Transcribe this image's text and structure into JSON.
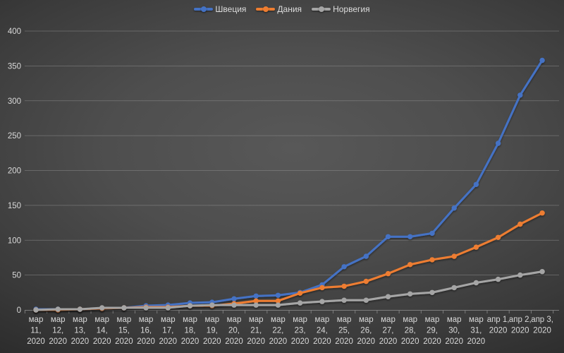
{
  "chart_data": {
    "type": "line",
    "title": "",
    "legend_position": "top",
    "grid": "horizontal",
    "ylim": [
      0,
      400
    ],
    "y_ticks": [
      0,
      50,
      100,
      150,
      200,
      250,
      300,
      350,
      400
    ],
    "categories": [
      "мар 11, 2020",
      "мар 12, 2020",
      "мар 13, 2020",
      "мар 14, 2020",
      "мар 15, 2020",
      "мар 16, 2020",
      "мар 17, 2020",
      "мар 18, 2020",
      "мар 19, 2020",
      "мар 20, 2020",
      "мар 21, 2020",
      "мар 22, 2020",
      "мар 23, 2020",
      "мар 24, 2020",
      "мар 25, 2020",
      "мар 26, 2020",
      "мар 27, 2020",
      "мар 28, 2020",
      "мар 29, 2020",
      "мар 30, 2020",
      "мар 31, 2020",
      "апр 1, 2020",
      "апр 2, 2020",
      "апр 3, 2020"
    ],
    "x_labels": [
      [
        "мар",
        "11,",
        "2020"
      ],
      [
        "мар",
        "12,",
        "2020"
      ],
      [
        "мар",
        "13,",
        "2020"
      ],
      [
        "мар",
        "14,",
        "2020"
      ],
      [
        "мар",
        "15,",
        "2020"
      ],
      [
        "мар",
        "16,",
        "2020"
      ],
      [
        "мар",
        "17,",
        "2020"
      ],
      [
        "мар",
        "18,",
        "2020"
      ],
      [
        "мар",
        "19,",
        "2020"
      ],
      [
        "мар",
        "20,",
        "2020"
      ],
      [
        "мар",
        "21,",
        "2020"
      ],
      [
        "мар",
        "22,",
        "2020"
      ],
      [
        "мар",
        "23,",
        "2020"
      ],
      [
        "мар",
        "24,",
        "2020"
      ],
      [
        "мар",
        "25,",
        "2020"
      ],
      [
        "мар",
        "26,",
        "2020"
      ],
      [
        "мар",
        "27,",
        "2020"
      ],
      [
        "мар",
        "28,",
        "2020"
      ],
      [
        "мар",
        "29,",
        "2020"
      ],
      [
        "мар",
        "30,",
        "2020"
      ],
      [
        "мар",
        "31,",
        "2020"
      ],
      [
        "апр 1,",
        "2020"
      ],
      [
        "апр 2,",
        "2020"
      ],
      [
        "апр 3,",
        "2020"
      ]
    ],
    "series": [
      {
        "name": "Швеция",
        "color": "#4472C4",
        "values": [
          1,
          1,
          1,
          2,
          3,
          6,
          7,
          10,
          11,
          16,
          20,
          21,
          25,
          36,
          62,
          77,
          105,
          105,
          110,
          146,
          180,
          239,
          308,
          358
        ]
      },
      {
        "name": "Дания",
        "color": "#ED7D31",
        "values": [
          0,
          0,
          1,
          2,
          3,
          4,
          4,
          6,
          6,
          9,
          13,
          13,
          24,
          32,
          34,
          41,
          52,
          65,
          72,
          77,
          90,
          104,
          123,
          139
        ]
      },
      {
        "name": "Норвегия",
        "color": "#A5A5A5",
        "values": [
          0,
          1,
          1,
          3,
          3,
          3,
          3,
          6,
          7,
          7,
          7,
          7,
          10,
          12,
          14,
          14,
          19,
          23,
          25,
          32,
          39,
          44,
          50,
          55
        ]
      }
    ]
  },
  "colors": {
    "axis_text": "#d9d9d9",
    "gridline": "#9a9a9a",
    "axis_line": "#8c8c8c"
  }
}
